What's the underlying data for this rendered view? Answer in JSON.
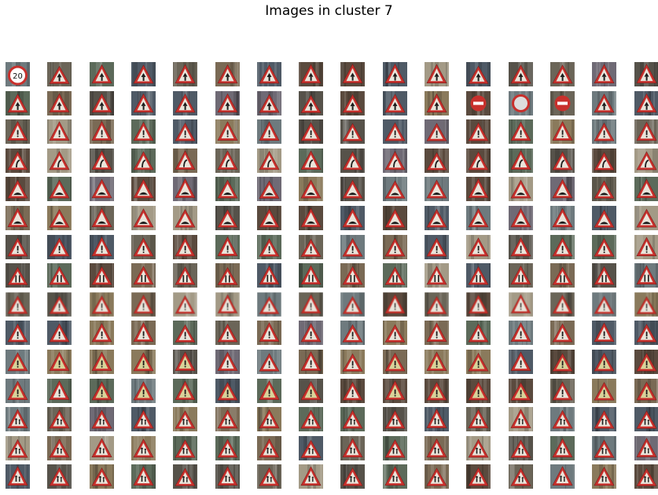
{
  "figure": {
    "title": "Images in cluster 7",
    "rows": 15,
    "cols": 16
  },
  "palette": {
    "backgrounds": [
      "#6b6558",
      "#5c6a5a",
      "#7a6a55",
      "#4f5a66",
      "#6e7a7e",
      "#8a7a5c",
      "#56524a",
      "#a39a86",
      "#5a4a3e",
      "#6f6a75"
    ],
    "sign_border_red": "#c8302c",
    "sign_fill": "#e9e4da",
    "sign_fill_yellow": "#d8d39a",
    "symbol": "#1c1c1c"
  },
  "rows": [
    {
      "kind": "mixed-caution-a"
    },
    {
      "kind": "mixed-caution-b"
    },
    {
      "kind": "caution-pale"
    },
    {
      "kind": "curve-pale"
    },
    {
      "kind": "bump"
    },
    {
      "kind": "bump-warm"
    },
    {
      "kind": "caution-dark"
    },
    {
      "kind": "narrow-road"
    },
    {
      "kind": "blurred-caution"
    },
    {
      "kind": "caution-mixed"
    },
    {
      "kind": "caution-yellow"
    },
    {
      "kind": "caution-yellow-b"
    },
    {
      "kind": "pedestrian-like"
    },
    {
      "kind": "children"
    },
    {
      "kind": "children-b"
    }
  ]
}
